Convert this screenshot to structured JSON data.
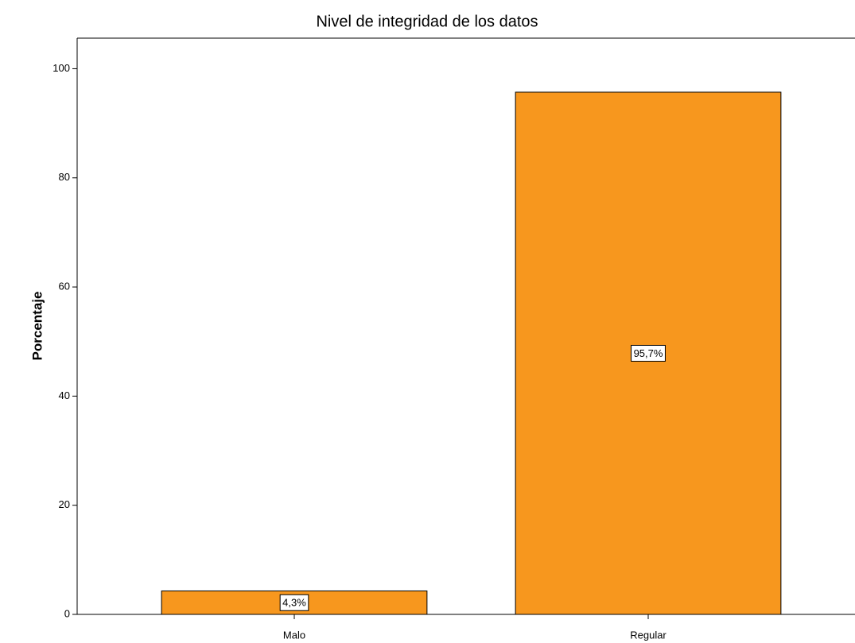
{
  "chart_data": {
    "type": "bar",
    "title": "Nivel de integridad de los datos",
    "y_label": "Porcentaje",
    "categories": [
      "Malo",
      "Regular"
    ],
    "values": [
      4.3,
      95.7
    ],
    "value_labels": [
      "4,3%",
      "95,7%"
    ],
    "color": "#f7971e",
    "ylim": [
      0,
      105.6
    ],
    "yticks": [
      0,
      20,
      40,
      60,
      80,
      100
    ],
    "grid": false
  }
}
